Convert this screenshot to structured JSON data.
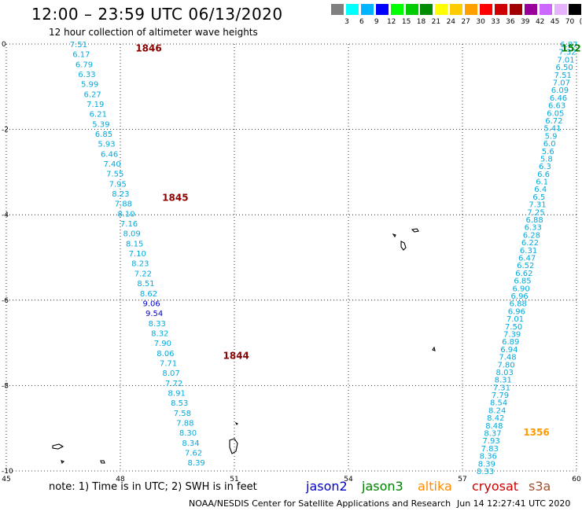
{
  "title": "12:00 – 23:59 UTC 06/13/2020",
  "subtitle": "12 hour collection of altimeter wave heights",
  "legend": {
    "colors": [
      "#808080",
      "#00ffff",
      "#00b4ff",
      "#0000ff",
      "#00ff00",
      "#00cc00",
      "#008c00",
      "#ffff00",
      "#ffcc00",
      "#ffa000",
      "#ff0000",
      "#cc0000",
      "#a00000",
      "#990099",
      "#cc66ff",
      "#e6b3ff",
      "#000000"
    ],
    "labels": [
      "3",
      "6",
      "9",
      "12",
      "15",
      "18",
      "21",
      "24",
      "27",
      "30",
      "33",
      "36",
      "39",
      "42",
      "45",
      "70",
      "(ft)"
    ]
  },
  "axes": {
    "x_ticks": [
      "45",
      "48",
      "51",
      "54",
      "57",
      "60"
    ],
    "y_ticks": [
      "0",
      "-2",
      "-4",
      "-6",
      "-8",
      "-10"
    ],
    "x_range": [
      45,
      60
    ],
    "y_range": [
      -10,
      0
    ]
  },
  "track_times": [
    {
      "label": "1846",
      "lon": 48.4,
      "lat": -0.1,
      "color": "#8b0000"
    },
    {
      "label": "1845",
      "lon": 49.1,
      "lat": -3.6,
      "color": "#8b0000"
    },
    {
      "label": "1844",
      "lon": 50.7,
      "lat": -7.3,
      "color": "#8b0000"
    },
    {
      "label": "152",
      "lon": 59.6,
      "lat": -0.1,
      "color": "#008000"
    },
    {
      "label": "1356",
      "lon": 58.6,
      "lat": -9.1,
      "color": "#ff9900"
    }
  ],
  "track1": {
    "values": [
      "7.51",
      "6.17",
      "6.79",
      "6.33",
      "5.99",
      "6.27",
      "7.19",
      "6.21",
      "5.39",
      "6.85",
      "5.93",
      "6.46",
      "7.40",
      "7.55",
      "7.95",
      "8.23",
      "7.88",
      "8.10",
      "7.16",
      "8.09",
      "8.15",
      "7.10",
      "8.23",
      "7.22",
      "8.51",
      "8.62",
      "9.06",
      "9.54",
      "8.33",
      "8.32",
      "7.90",
      "8.06",
      "7.71",
      "8.07",
      "7.72",
      "8.91",
      "8.53",
      "7.58",
      "7.88",
      "8.30",
      "8.34",
      "7.62",
      "8.39"
    ],
    "start": [
      46.9,
      0.0
    ],
    "end": [
      50.0,
      -9.8
    ]
  },
  "track2": {
    "values": [
      "6.87",
      "7.32",
      "7.01",
      "6.50",
      "7.51",
      "7.07",
      "6.09",
      "6.46",
      "6.63",
      "6.05",
      "6.72",
      "5.41",
      "5.9",
      "6.0",
      "5.6",
      "5.8",
      "6.3",
      "6.6",
      "6.1",
      "6.4",
      "6.5",
      "7.31",
      "7.25",
      "6.88",
      "6.33",
      "6.28",
      "6.22",
      "6.31",
      "6.47",
      "6.52",
      "6.62",
      "6.85",
      "6.90",
      "6.96",
      "6.88",
      "6.96",
      "7.01",
      "7.50",
      "7.39",
      "6.89",
      "6.94",
      "7.48",
      "7.80",
      "8.03",
      "8.31",
      "7.31",
      "7.79",
      "8.54",
      "8.24",
      "8.42",
      "8.48",
      "8.37",
      "7.93",
      "7.83",
      "8.36",
      "8.39",
      "8.33"
    ],
    "start": [
      59.8,
      0.0
    ],
    "end": [
      57.6,
      -10.0
    ]
  },
  "satellites": [
    {
      "name": "jason2",
      "color": "#0000cc"
    },
    {
      "name": "jason3",
      "color": "#008000"
    },
    {
      "name": "altika",
      "color": "#ff8c00"
    },
    {
      "name": "cryosat",
      "color": "#cc0000"
    },
    {
      "name": "s3a",
      "color": "#a0522d"
    }
  ],
  "note": "note:  1) Time is in UTC;  2) SWH is in feet",
  "footer": "NOAA/NESDIS Center for Satellite Applications and Research",
  "footer_time": "Jun 14 12:27:41 UTC 2020"
}
